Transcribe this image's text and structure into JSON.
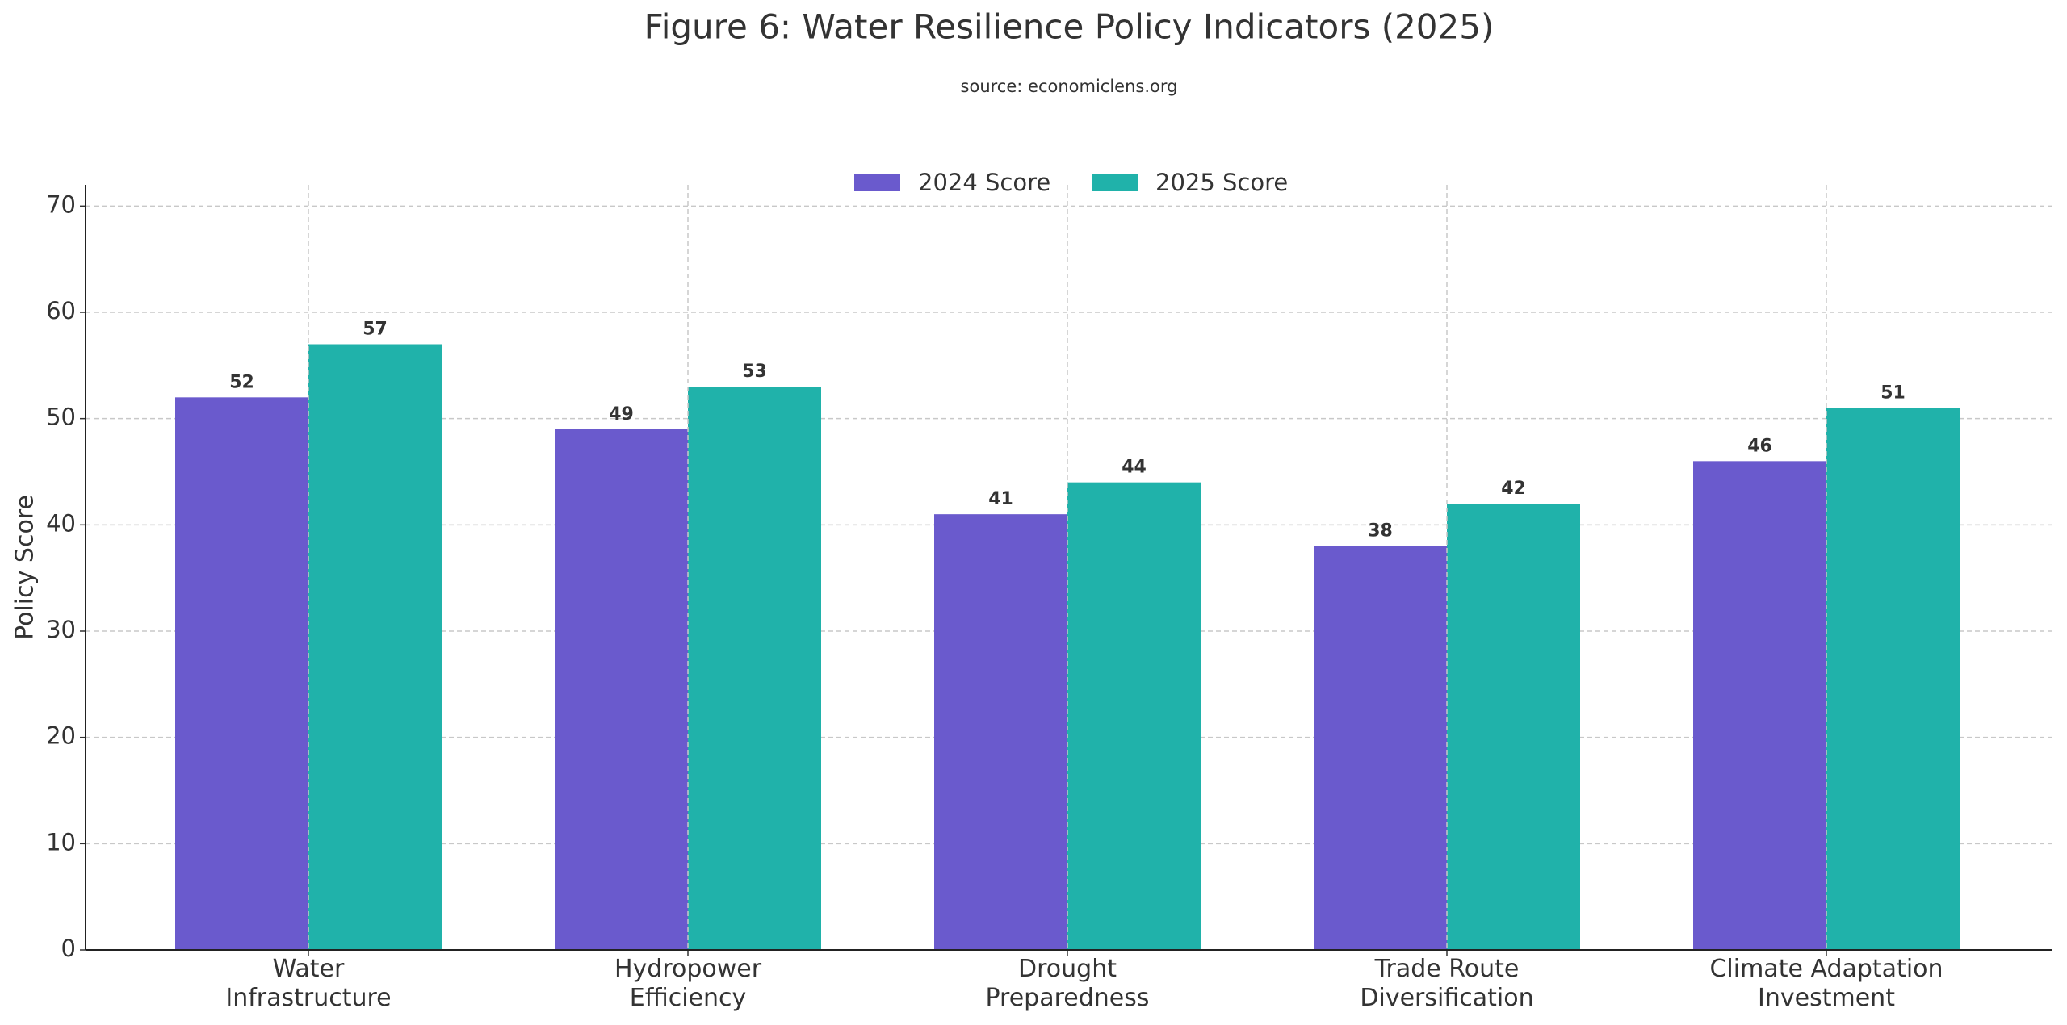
{
  "chart_data": {
    "type": "bar",
    "title": "Figure 6: Water Resilience Policy Indicators (2025)",
    "subtitle": "source: economiclens.org",
    "y_label": "Policy Score",
    "categories": [
      "Water\nInfrastructure",
      "Hydropower\nEfficiency",
      "Drought\nPreparedness",
      "Trade Route\nDiversification",
      "Climate Adaptation\nInvestment"
    ],
    "series": [
      {
        "name": "2024 Score",
        "color": "#6a5acd",
        "values": [
          52,
          49,
          41,
          38,
          46
        ]
      },
      {
        "name": "2025 Score",
        "color": "#20b2aa",
        "values": [
          57,
          53,
          44,
          42,
          51
        ]
      }
    ],
    "ylim": [
      0,
      72
    ],
    "yticks": [
      0,
      10,
      20,
      30,
      40,
      50,
      60,
      70
    ],
    "grid": true,
    "legend": "upper center"
  }
}
